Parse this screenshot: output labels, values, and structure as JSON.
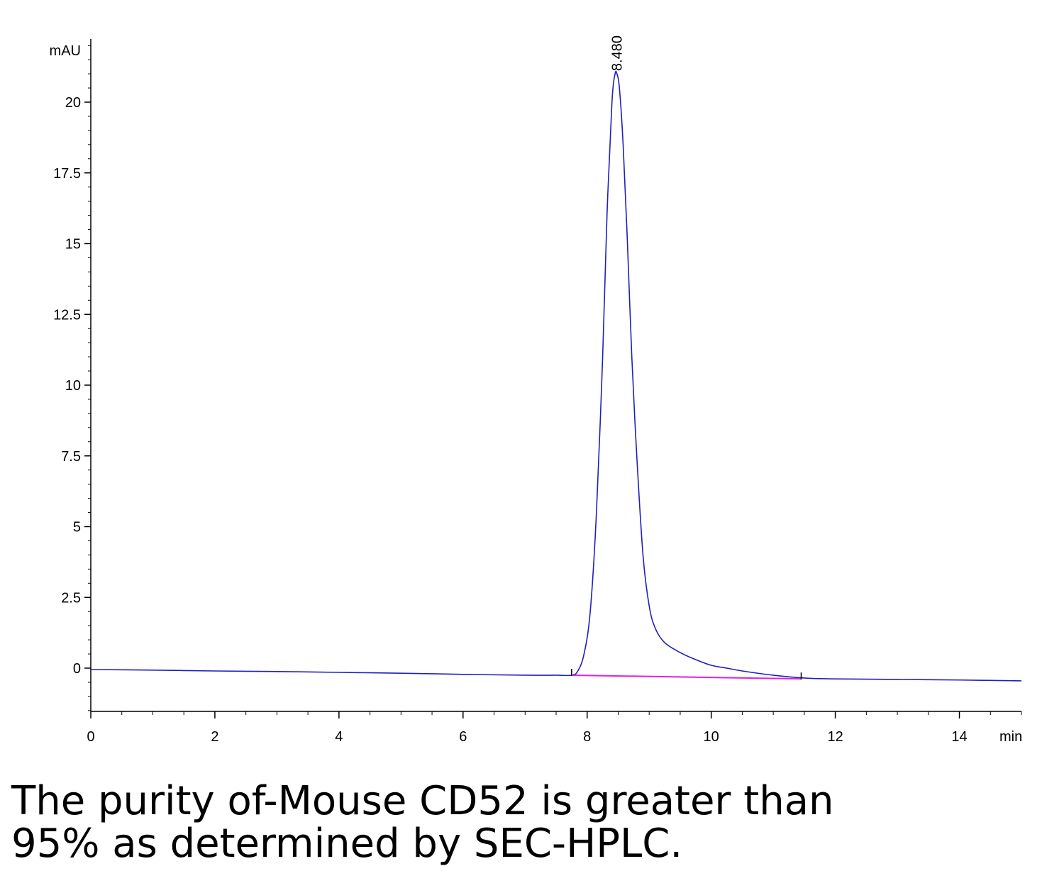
{
  "chart_data": {
    "type": "line",
    "ylabel": "mAU",
    "xlabel": "min",
    "xlim": [
      0,
      15
    ],
    "ylim": [
      -1.5,
      22
    ],
    "x_ticks": [
      0,
      2,
      4,
      6,
      8,
      10,
      12,
      14
    ],
    "y_ticks": [
      0,
      2.5,
      5,
      7.5,
      10,
      12.5,
      15,
      17.5,
      20
    ],
    "x_tick_labels": [
      "0",
      "2",
      "4",
      "6",
      "8",
      "10",
      "12",
      "14"
    ],
    "y_tick_labels": [
      "0",
      "2.5",
      "5",
      "7.5",
      "10",
      "12.5",
      "15",
      "17.5",
      "20"
    ],
    "grid": false,
    "series": [
      {
        "color": "#1f1fbf",
        "x": [
          0,
          1,
          2,
          3,
          4,
          5,
          6,
          7,
          7.5,
          7.75,
          7.85,
          7.95,
          8.05,
          8.15,
          8.25,
          8.32,
          8.4,
          8.45,
          8.48,
          8.52,
          8.58,
          8.65,
          8.72,
          8.8,
          8.9,
          9.0,
          9.1,
          9.25,
          9.5,
          9.75,
          10.0,
          10.25,
          10.5,
          11.0,
          11.5,
          12,
          13,
          14,
          15
        ],
        "y": [
          -0.05,
          -0.07,
          -0.1,
          -0.12,
          -0.15,
          -0.18,
          -0.22,
          -0.25,
          -0.25,
          -0.25,
          -0.1,
          0.5,
          2.0,
          5.5,
          11.0,
          16.0,
          20.0,
          21.0,
          21.0,
          20.5,
          18.5,
          15.0,
          11.0,
          7.5,
          4.0,
          2.2,
          1.4,
          0.9,
          0.55,
          0.3,
          0.1,
          0.0,
          -0.1,
          -0.25,
          -0.35,
          -0.38,
          -0.4,
          -0.42,
          -0.45
        ]
      },
      {
        "color": "#e020e0",
        "x": [
          7.75,
          11.45
        ],
        "y": [
          -0.25,
          -0.38
        ]
      }
    ],
    "annotations": [
      {
        "text": "8.480",
        "x": 8.48,
        "y": 21.0
      }
    ],
    "markers": [
      7.75,
      11.45
    ]
  },
  "caption": {
    "line1": "The purity of-Mouse CD52 is greater than",
    "line2": "95% as determined by SEC-HPLC."
  }
}
